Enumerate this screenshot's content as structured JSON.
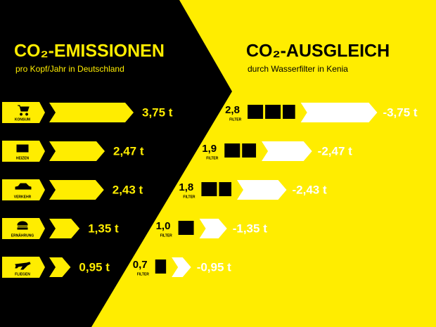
{
  "chart_data": {
    "type": "arrow-bar",
    "panels": [
      {
        "title": "CO₂-EMISSIONEN",
        "subtitle": "pro Kopf/Jahr in Deutschland"
      },
      {
        "title": "CO₂-AUSGLEICH",
        "subtitle": "durch Wasserfilter in Kenia"
      }
    ],
    "categories": [
      "KONSUM",
      "HEIZEN",
      "VERKEHR",
      "ERNÄHRUNG",
      "FLIEGEN"
    ],
    "filter_label": "FILTER",
    "background": "#000000",
    "accent": "#ffed00",
    "series": [
      {
        "color": "#ffed00",
        "values": [
          3.75,
          2.47,
          2.43,
          1.35,
          0.95
        ],
        "value_labels": [
          "3,75 t",
          "2,47 t",
          "2,43 t",
          "1,35 t",
          "0,95 t"
        ]
      },
      {
        "color": "#000000",
        "values": [
          2.8,
          1.9,
          1.8,
          1.0,
          0.7
        ],
        "value_labels": [
          "2,8",
          "1,9",
          "1,8",
          "1,0",
          "0,7"
        ]
      },
      {
        "color": "#ffffff",
        "values": [
          -3.75,
          -2.47,
          -2.43,
          -1.35,
          -0.95
        ],
        "value_labels": [
          "-3,75 t",
          "-2,47 t",
          "-2,43 t",
          "-1,35 t",
          "-0,95 t"
        ]
      }
    ]
  }
}
